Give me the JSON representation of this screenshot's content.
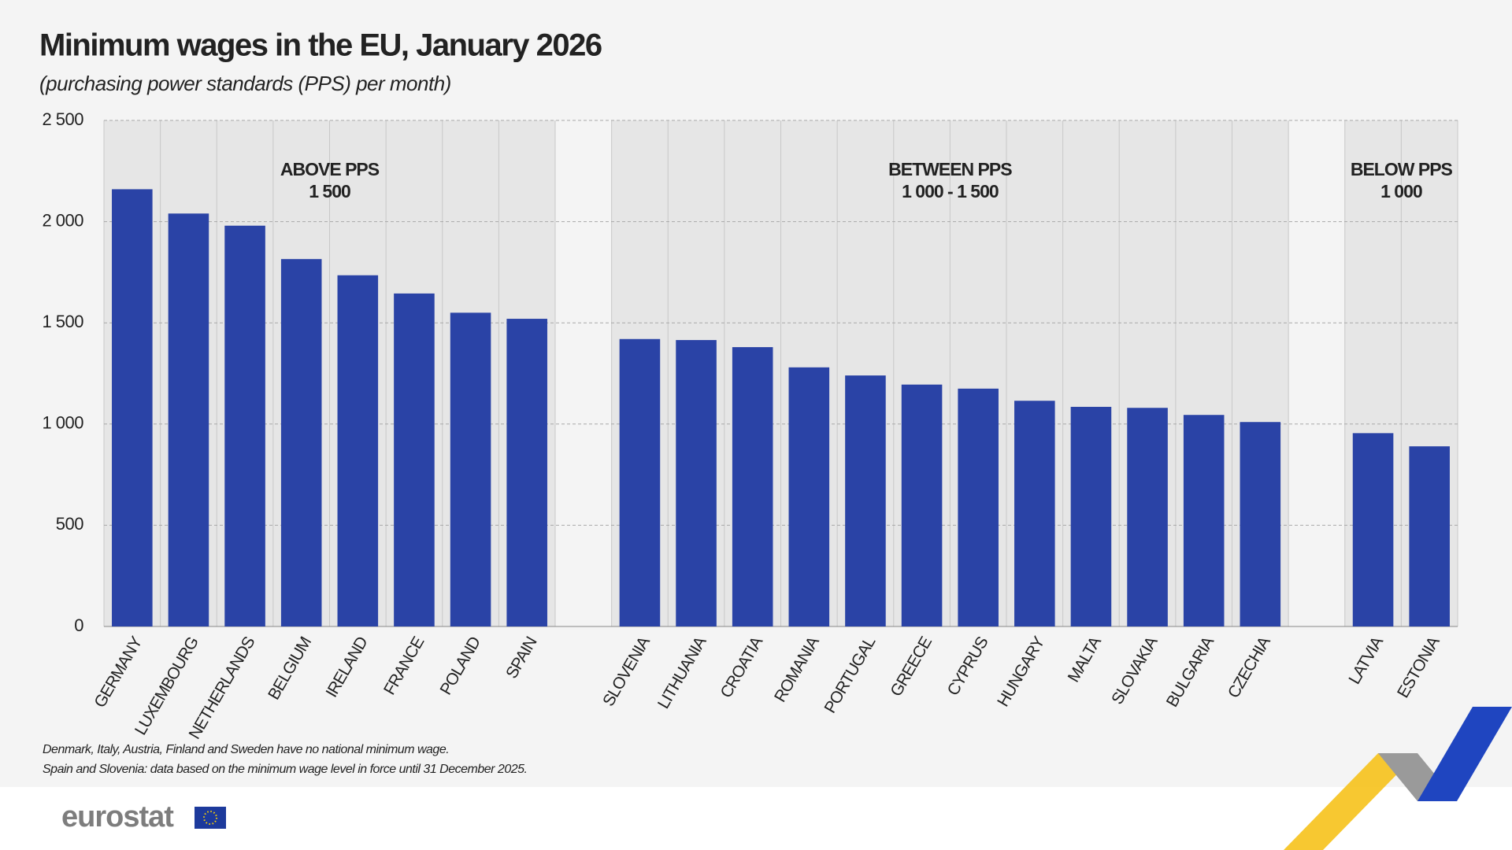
{
  "chart_data": {
    "type": "bar",
    "title": "Minimum wages in the EU, January 2026",
    "subtitle": "(purchasing power standards (PPS) per month)",
    "categories": [
      "GERMANY",
      "LUXEMBOURG",
      "NETHERLANDS",
      "BELGIUM",
      "IRELAND",
      "FRANCE",
      "POLAND",
      "SPAIN",
      null,
      "SLOVENIA",
      "LITHUANIA",
      "CROATIA",
      "ROMANIA",
      "PORTUGAL",
      "GREECE",
      "CYPRUS",
      "HUNGARY",
      "MALTA",
      "SLOVAKIA",
      "BULGARIA",
      "CZECHIA",
      null,
      "LATVIA",
      "ESTONIA"
    ],
    "values": [
      2160,
      2040,
      1980,
      1815,
      1735,
      1645,
      1550,
      1520,
      null,
      1420,
      1415,
      1380,
      1280,
      1240,
      1195,
      1175,
      1115,
      1085,
      1080,
      1045,
      1010,
      null,
      955,
      890
    ],
    "color": "#2a43a6",
    "groups": [
      [
        "ABOVE PPS",
        "1 500"
      ],
      [
        "BETWEEN PPS",
        "1 000 - 1 500"
      ],
      [
        "BELOW PPS",
        "1 000"
      ]
    ],
    "ylim": [
      0,
      2500
    ],
    "yticks": [
      0,
      500,
      {
        "value": 1000,
        "label": "1 000"
      },
      {
        "value": 1500,
        "label": "1 500"
      },
      {
        "value": 2000,
        "label": "2 000"
      },
      {
        "value": 2500,
        "label": "2 500"
      }
    ],
    "grid": true,
    "notes": [
      "Denmark, Italy, Austria, Finland and Sweden have no national minimum wage.",
      "Spain and Slovenia: data based on the minimum wage level in force until 31 December 2025."
    ]
  },
  "footer": {
    "logo": "eurostat"
  }
}
